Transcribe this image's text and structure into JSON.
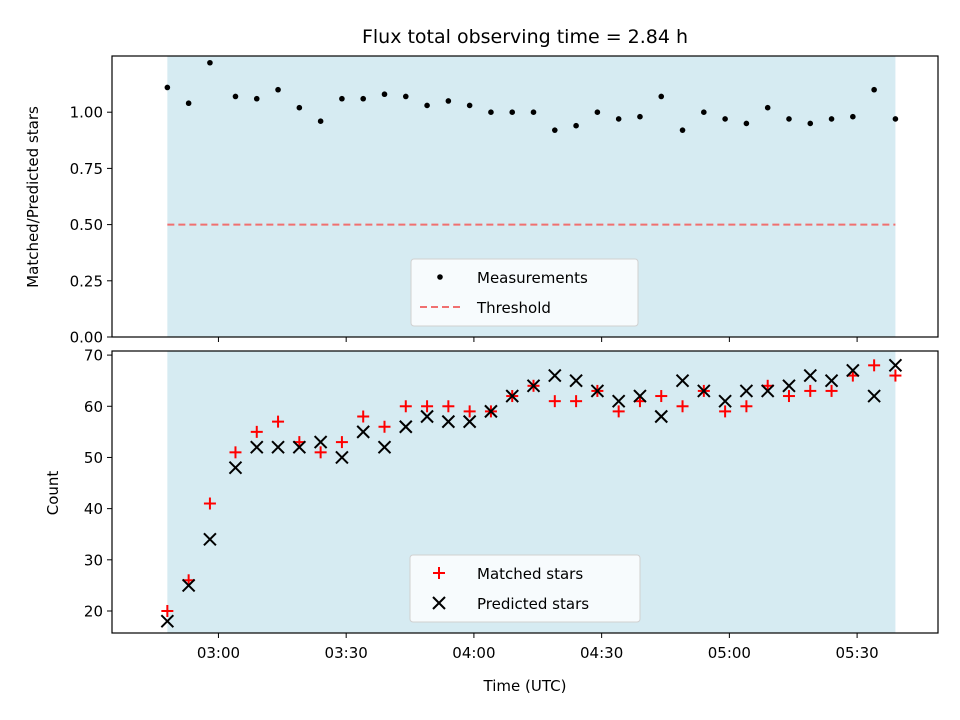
{
  "chart_data": [
    {
      "type": "scatter",
      "title": "Flux total observing time = 2.84 h",
      "ylabel": "Matched/Predicted stars",
      "xlabel": "",
      "ylim": [
        0.0,
        1.25
      ],
      "yticks": [
        "0.00",
        "0.25",
        "0.50",
        "0.75",
        "1.00"
      ],
      "grid": false,
      "legend_position": "lower center",
      "shaded_interval": {
        "start": "02:48",
        "end": "05:39"
      },
      "threshold": {
        "name": "Threshold",
        "value": 0.5,
        "color": "#f07070"
      },
      "series": [
        {
          "name": "Measurements",
          "color": "#000000",
          "x": [
            "02:48",
            "02:53",
            "02:58",
            "03:04",
            "03:09",
            "03:14",
            "03:19",
            "03:24",
            "03:29",
            "03:34",
            "03:39",
            "03:44",
            "03:49",
            "03:54",
            "03:59",
            "04:04",
            "04:09",
            "04:14",
            "04:19",
            "04:24",
            "04:29",
            "04:34",
            "04:39",
            "04:44",
            "04:49",
            "04:54",
            "04:59",
            "05:04",
            "05:09",
            "05:14",
            "05:19",
            "05:24",
            "05:29",
            "05:34",
            "05:39"
          ],
          "values": [
            1.11,
            1.04,
            1.22,
            1.07,
            1.06,
            1.1,
            1.02,
            0.96,
            1.06,
            1.06,
            1.08,
            1.07,
            1.03,
            1.05,
            1.03,
            1.0,
            1.0,
            1.0,
            0.92,
            0.94,
            1.0,
            0.97,
            0.98,
            1.07,
            0.92,
            1.0,
            0.97,
            0.95,
            1.02,
            0.97,
            0.95,
            0.97,
            0.98,
            1.1,
            0.97
          ]
        }
      ]
    },
    {
      "type": "scatter",
      "title": "",
      "xlabel": "Time (UTC)",
      "ylabel": "Count",
      "ylim": [
        15.7,
        70.8
      ],
      "yticks": [
        "20",
        "30",
        "40",
        "50",
        "60",
        "70"
      ],
      "xticks": [
        "03:00",
        "03:30",
        "04:00",
        "04:30",
        "05:00",
        "05:30"
      ],
      "grid": false,
      "legend_position": "lower center",
      "shaded_interval": {
        "start": "02:48",
        "end": "05:39"
      },
      "series": [
        {
          "name": "Matched stars",
          "color": "#ff0000",
          "marker": "plus",
          "x": [
            "02:48",
            "02:53",
            "02:58",
            "03:04",
            "03:09",
            "03:14",
            "03:19",
            "03:24",
            "03:29",
            "03:34",
            "03:39",
            "03:44",
            "03:49",
            "03:54",
            "03:59",
            "04:04",
            "04:09",
            "04:14",
            "04:19",
            "04:24",
            "04:29",
            "04:34",
            "04:39",
            "04:44",
            "04:49",
            "04:54",
            "04:59",
            "05:04",
            "05:09",
            "05:14",
            "05:19",
            "05:24",
            "05:29",
            "05:34",
            "05:39"
          ],
          "values": [
            20,
            26,
            41,
            51,
            55,
            57,
            53,
            51,
            53,
            58,
            56,
            60,
            60,
            60,
            59,
            59,
            62,
            64,
            61,
            61,
            63,
            59,
            61,
            62,
            60,
            63,
            59,
            60,
            64,
            62,
            63,
            63,
            66,
            68,
            66
          ]
        },
        {
          "name": "Predicted stars",
          "color": "#000000",
          "marker": "x",
          "x": [
            "02:48",
            "02:53",
            "02:58",
            "03:04",
            "03:09",
            "03:14",
            "03:19",
            "03:24",
            "03:29",
            "03:34",
            "03:39",
            "03:44",
            "03:49",
            "03:54",
            "03:59",
            "04:04",
            "04:09",
            "04:14",
            "04:19",
            "04:24",
            "04:29",
            "04:34",
            "04:39",
            "04:44",
            "04:49",
            "04:54",
            "04:59",
            "05:04",
            "05:09",
            "05:14",
            "05:19",
            "05:24",
            "05:29",
            "05:34",
            "05:39"
          ],
          "values": [
            18,
            25,
            34,
            48,
            52,
            52,
            52,
            53,
            50,
            55,
            52,
            56,
            58,
            57,
            57,
            59,
            62,
            64,
            66,
            65,
            63,
            61,
            62,
            58,
            65,
            63,
            61,
            63,
            63,
            64,
            66,
            65,
            67,
            62,
            68
          ]
        }
      ]
    }
  ],
  "colors": {
    "shade": "#add8e6",
    "shade_alpha": 0.5
  }
}
